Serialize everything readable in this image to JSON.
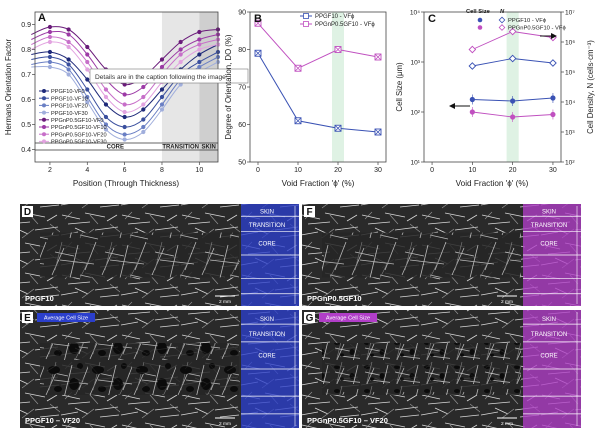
{
  "chart_data": [
    {
      "panel_letter": "A",
      "type": "line",
      "xlabel": "Position (Through Thickness)",
      "ylabel": "Hermans Orientation Factor",
      "xlim": [
        1.2,
        11.0
      ],
      "ylim": [
        0.35,
        0.95
      ],
      "xticks": [
        "2",
        "4",
        "6",
        "8",
        "10"
      ],
      "xtick_values": [
        2,
        4,
        6,
        8,
        10
      ],
      "yticks": [
        "0.4",
        "0.5",
        "0.6",
        "0.7",
        "0.8",
        "0.9"
      ],
      "ytick_values": [
        0.4,
        0.5,
        0.6,
        0.7,
        0.8,
        0.9
      ],
      "regions": [
        {
          "label": "CORE",
          "x0": 3.0,
          "x1": 8.0,
          "shade": "#ffffff"
        },
        {
          "label": "TRANSITION",
          "x0": 8.0,
          "x1": 10.0,
          "shade": "#e6e6e6"
        },
        {
          "label": "SKIN",
          "x0": 10.0,
          "x1": 11.0,
          "shade": "#cfcfcf"
        }
      ],
      "x": [
        1,
        2,
        3,
        4,
        5,
        6,
        7,
        8,
        9,
        10,
        11
      ],
      "series": [
        {
          "name": "PPGF10-VF0",
          "color": "#1f2a7a",
          "values": [
            0.78,
            0.79,
            0.76,
            0.68,
            0.58,
            0.53,
            0.56,
            0.64,
            0.72,
            0.78,
            0.82
          ]
        },
        {
          "name": "PPGF10-VF10",
          "color": "#3a4f9e",
          "values": [
            0.76,
            0.77,
            0.74,
            0.64,
            0.53,
            0.49,
            0.52,
            0.61,
            0.7,
            0.75,
            0.79
          ]
        },
        {
          "name": "PPGF10-VF20",
          "color": "#6a7fc4",
          "values": [
            0.74,
            0.75,
            0.72,
            0.61,
            0.5,
            0.46,
            0.49,
            0.58,
            0.68,
            0.73,
            0.77
          ]
        },
        {
          "name": "PPGF10-VF30",
          "color": "#a0aedc",
          "values": [
            0.73,
            0.73,
            0.7,
            0.59,
            0.48,
            0.44,
            0.47,
            0.56,
            0.66,
            0.71,
            0.75
          ]
        },
        {
          "name": "PPGnP0.5GF10-VF0",
          "color": "#6a1b7a",
          "values": [
            0.86,
            0.89,
            0.88,
            0.81,
            0.72,
            0.66,
            0.69,
            0.76,
            0.83,
            0.87,
            0.88
          ]
        },
        {
          "name": "PPGnP0.5GF10-VF10",
          "color": "#9c3aa6",
          "values": [
            0.84,
            0.87,
            0.86,
            0.78,
            0.68,
            0.62,
            0.65,
            0.73,
            0.8,
            0.84,
            0.86
          ]
        },
        {
          "name": "PPGnP0.5GF10-VF20",
          "color": "#c76fc9",
          "values": [
            0.82,
            0.85,
            0.83,
            0.75,
            0.64,
            0.58,
            0.61,
            0.7,
            0.78,
            0.82,
            0.84
          ]
        },
        {
          "name": "PPGnP0.5GF10-VF30",
          "color": "#e2a2e0",
          "values": [
            0.8,
            0.83,
            0.81,
            0.72,
            0.61,
            0.55,
            0.58,
            0.67,
            0.75,
            0.8,
            0.82
          ]
        }
      ],
      "annotation": "Details are in the caption following the image"
    },
    {
      "panel_letter": "B",
      "type": "line",
      "xlabel": "Void Fraction 'ɸ' (%)",
      "ylabel": "Degree of Orientation, DO (%)",
      "xlim": [
        -2,
        32
      ],
      "ylim": [
        50,
        90
      ],
      "xticks": [
        "0",
        "10",
        "20",
        "30"
      ],
      "xtick_values": [
        0,
        10,
        20,
        30
      ],
      "yticks": [
        "50",
        "60",
        "70",
        "80",
        "90"
      ],
      "ytick_values": [
        50,
        60,
        70,
        80,
        90
      ],
      "highlight_band": [
        18.5,
        21.5
      ],
      "x": [
        0,
        10,
        20,
        30
      ],
      "series": [
        {
          "name": "PPGF10 - VFɸ",
          "color": "#3a52b4",
          "values": [
            79,
            61,
            59,
            58
          ]
        },
        {
          "name": "PPGnP0.5GF10 - VFɸ",
          "color": "#c050c0",
          "values": [
            87,
            75,
            80,
            78
          ]
        }
      ]
    },
    {
      "panel_letter": "C",
      "type": "scatter",
      "xlabel": "Void Fraction 'ɸ' (%)",
      "ylabel": "Cell Size (μm)",
      "ylabel_right": "Cell Density, N (cells·cm⁻³)",
      "xlim": [
        -2,
        32
      ],
      "ylim_log": [
        1,
        4
      ],
      "ylim_right_log": [
        2,
        7
      ],
      "xticks": [
        "0",
        "10",
        "20",
        "30"
      ],
      "xtick_values": [
        0,
        10,
        20,
        30
      ],
      "yticks": [
        "10¹",
        "10²",
        "10³",
        "10⁴"
      ],
      "ytick_values": [
        1,
        2,
        3,
        4
      ],
      "yticks_right": [
        "10²",
        "10³",
        "10⁴",
        "10⁵",
        "10⁶",
        "10⁷"
      ],
      "ytick_values_right": [
        2,
        3,
        4,
        5,
        6,
        7
      ],
      "highlight_band": [
        18.5,
        21.5
      ],
      "legend_header_left": "Cell Size",
      "legend_header_right": "N",
      "x": [
        10,
        20,
        30
      ],
      "series": [
        {
          "name": "PPGF10 - VFɸ",
          "color": "#3a52b4",
          "kind": "cell_size",
          "log10_values": [
            2.25,
            2.22,
            2.28
          ]
        },
        {
          "name": "PPGnP0.5GF10 - VFɸ",
          "color": "#c050c0",
          "kind": "cell_size",
          "log10_values": [
            2.0,
            1.9,
            1.95
          ]
        },
        {
          "name": "PPGF10 - VFɸ",
          "color": "#3a52b4",
          "kind": "density",
          "log10_values": [
            5.2,
            5.45,
            5.3
          ]
        },
        {
          "name": "PPGnP0.5GF10 - VFɸ",
          "color": "#c050c0",
          "kind": "density",
          "log10_values": [
            5.75,
            6.35,
            6.15
          ]
        }
      ],
      "legend": [
        {
          "name": "PPGF10 - VFɸ",
          "color": "#3a52b4"
        },
        {
          "name": "PPGnP0.5GF10 - VFɸ",
          "color": "#c050c0"
        }
      ]
    }
  ],
  "images": [
    {
      "panel_letter": "D",
      "caption": "PPGF10",
      "scale": "2 mm",
      "zone_color": "#2b3fcc",
      "zones": [
        "SKIN",
        "TRANSITION",
        "CORE"
      ]
    },
    {
      "panel_letter": "F",
      "caption": "PPGnP0.5GF10",
      "scale": "2 mm",
      "zone_color": "#b13ec8",
      "zones": [
        "SKIN",
        "TRANSITION",
        "CORE"
      ]
    },
    {
      "panel_letter": "E",
      "caption": "PPGF10 – VF20",
      "scale": "2 mm",
      "zone_color": "#2b3fcc",
      "zones": [
        "SKIN",
        "TRANSITION",
        "CORE"
      ],
      "tag": "Average Cell Size"
    },
    {
      "panel_letter": "G",
      "caption": "PPGnP0.5GF10 – VF20",
      "scale": "2 mm",
      "zone_color": "#b13ec8",
      "zones": [
        "SKIN",
        "TRANSITION",
        "CORE"
      ],
      "tag": "Average Cell Size"
    }
  ]
}
